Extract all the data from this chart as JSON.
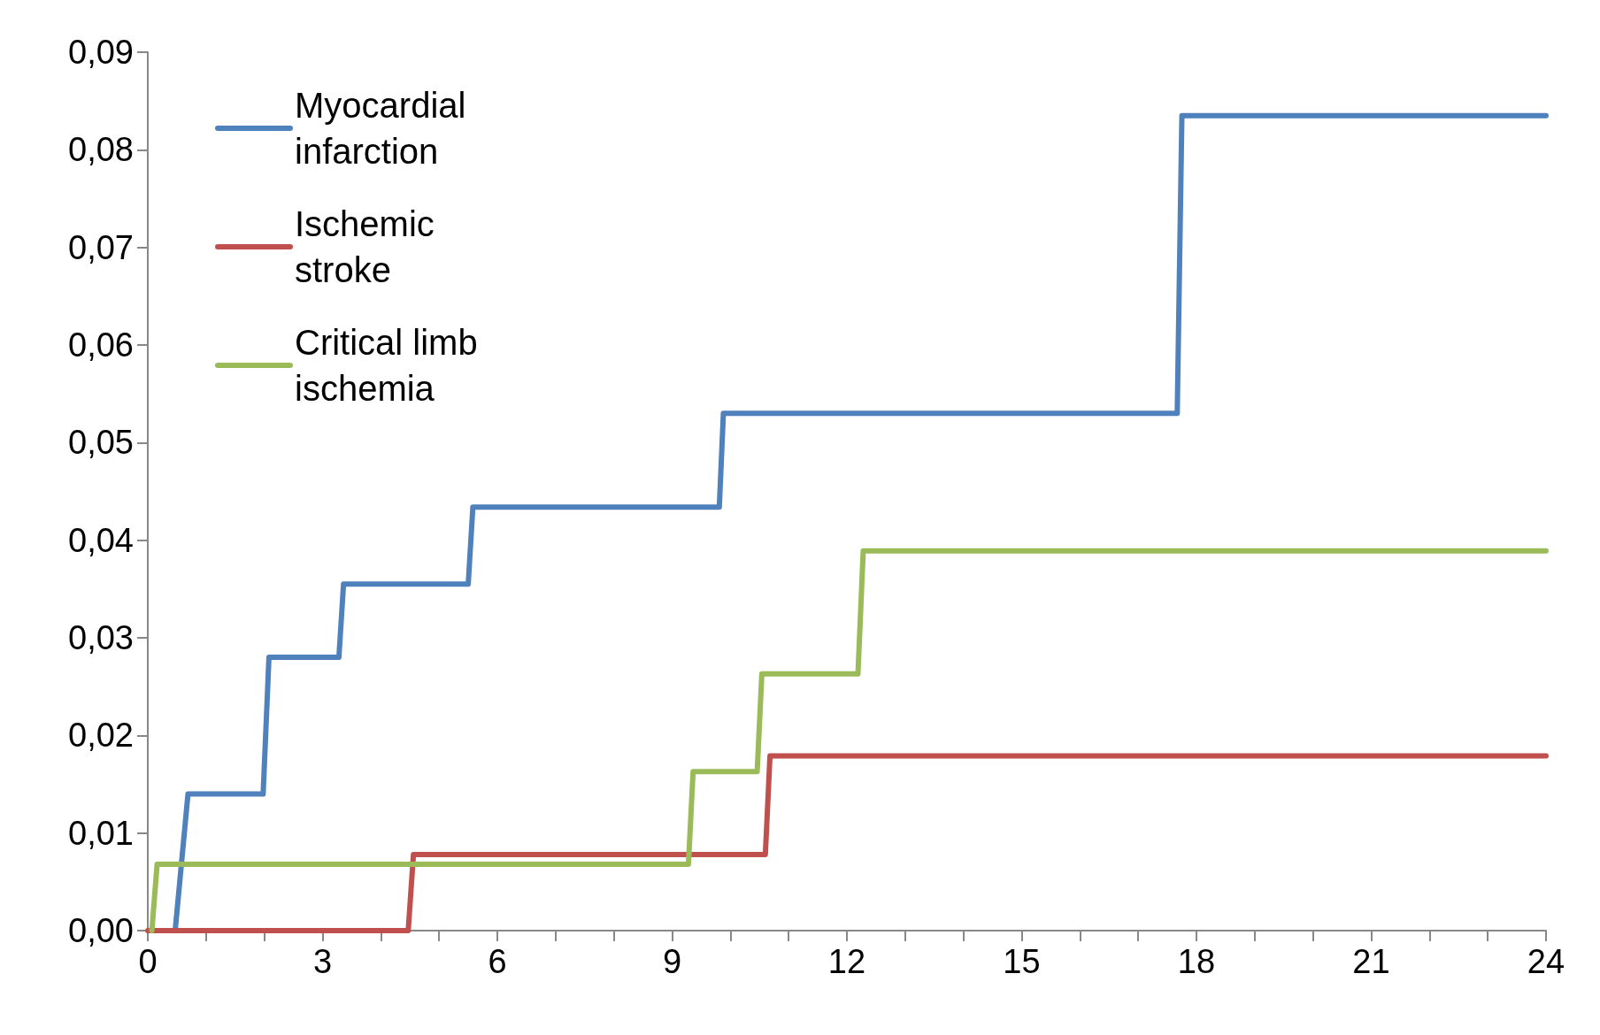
{
  "chart_data": {
    "type": "line",
    "marker": "none",
    "line_style": "solid",
    "grid": false,
    "legend": "top left",
    "xlim": [
      0,
      24
    ],
    "xticks": [
      0,
      {
        "value": 1,
        "label": null
      },
      {
        "value": 2,
        "label": null
      },
      3,
      {
        "value": 4,
        "label": null
      },
      {
        "value": 5,
        "label": null
      },
      6,
      {
        "value": 7,
        "label": null
      },
      {
        "value": 8,
        "label": null
      },
      9,
      {
        "value": 10,
        "label": null
      },
      {
        "value": 11,
        "label": null
      },
      12,
      {
        "value": 13,
        "label": null
      },
      {
        "value": 14,
        "label": null
      },
      15,
      {
        "value": 16,
        "label": null
      },
      {
        "value": 17,
        "label": null
      },
      18,
      {
        "value": 19,
        "label": null
      },
      {
        "value": 20,
        "label": null
      },
      21,
      {
        "value": 22,
        "label": null
      },
      {
        "value": 23,
        "label": null
      },
      24
    ],
    "ylim": [
      0,
      0.09
    ],
    "yticks": [
      {
        "value": 0,
        "label": "0,00"
      },
      {
        "value": 0.01,
        "label": "0,01"
      },
      {
        "value": 0.02,
        "label": "0,02"
      },
      {
        "value": 0.03,
        "label": "0,03"
      },
      {
        "value": 0.04,
        "label": "0,04"
      },
      {
        "value": 0.05,
        "label": "0,05"
      },
      {
        "value": 0.06,
        "label": "0,06"
      },
      {
        "value": 0.07,
        "label": "0,07"
      },
      {
        "value": 0.08,
        "label": "0,08"
      },
      {
        "value": 0.09,
        "label": "0,09"
      }
    ],
    "series": [
      {
        "name": "Myocardial infarction",
        "color": "#4f81bd",
        "x": [
          0.47,
          0.69,
          1.98,
          2.08,
          3.28,
          3.36,
          5.5,
          5.58,
          9.81,
          9.88,
          17.67,
          17.75,
          24
        ],
        "values": [
          0,
          0.014,
          0.014,
          0.028,
          0.028,
          0.0355,
          0.0355,
          0.0434,
          0.0434,
          0.053,
          0.053,
          0.0835,
          0.0835
        ]
      },
      {
        "name": "Ischemic stroke",
        "color": "#c0504d",
        "x": [
          0,
          4.47,
          4.56,
          10.6,
          10.68,
          24
        ],
        "values": [
          0,
          0,
          0.0078,
          0.0078,
          0.0179,
          0.0179
        ]
      },
      {
        "name": "Critical limb ischemia",
        "color": "#9bbb59",
        "x": [
          0.07,
          0.16,
          9.28,
          9.36,
          10.46,
          10.54,
          12.19,
          12.28,
          24
        ],
        "values": [
          0,
          0.0068,
          0.0068,
          0.0163,
          0.0163,
          0.0263,
          0.0263,
          0.0389,
          0.0389
        ]
      }
    ]
  }
}
